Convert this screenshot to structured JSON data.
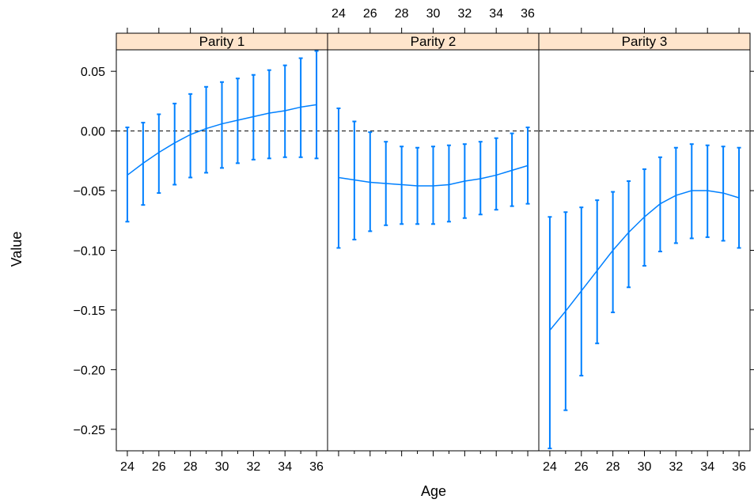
{
  "chart_data": {
    "type": "line",
    "xlabel": "Age",
    "ylabel": "Value",
    "xlim": [
      23.3,
      36.7
    ],
    "ylim": [
      -0.268,
      0.068
    ],
    "x_ticks": [
      24,
      26,
      28,
      30,
      32,
      34,
      36
    ],
    "y_ticks": [
      -0.25,
      -0.2,
      -0.15,
      -0.1,
      -0.05,
      0.0,
      0.05
    ],
    "y_tick_labels": [
      "−0.25",
      "−0.20",
      "−0.15",
      "−0.10",
      "−0.05",
      "0.00",
      "0.05"
    ],
    "reference_line": 0,
    "panels": [
      {
        "title": "Parity 1",
        "x": [
          24,
          25,
          26,
          27,
          28,
          29,
          30,
          31,
          32,
          33,
          34,
          35,
          36
        ],
        "y": [
          -0.037,
          -0.027,
          -0.018,
          -0.01,
          -0.003,
          0.002,
          0.006,
          0.009,
          0.012,
          0.015,
          0.017,
          0.02,
          0.022
        ],
        "lower": [
          -0.076,
          -0.062,
          -0.052,
          -0.045,
          -0.039,
          -0.035,
          -0.031,
          -0.027,
          -0.024,
          -0.023,
          -0.022,
          -0.022,
          -0.023
        ],
        "upper": [
          0.003,
          0.007,
          0.014,
          0.023,
          0.031,
          0.037,
          0.041,
          0.044,
          0.047,
          0.051,
          0.055,
          0.061,
          0.067
        ]
      },
      {
        "title": "Parity 2",
        "x": [
          24,
          25,
          26,
          27,
          28,
          29,
          30,
          31,
          32,
          33,
          34,
          35,
          36
        ],
        "y": [
          -0.039,
          -0.041,
          -0.043,
          -0.044,
          -0.045,
          -0.046,
          -0.046,
          -0.045,
          -0.042,
          -0.04,
          -0.037,
          -0.033,
          -0.029
        ],
        "lower": [
          -0.098,
          -0.091,
          -0.084,
          -0.079,
          -0.078,
          -0.078,
          -0.078,
          -0.076,
          -0.073,
          -0.07,
          -0.066,
          -0.063,
          -0.061
        ],
        "upper": [
          0.019,
          0.008,
          -0.001,
          -0.009,
          -0.013,
          -0.014,
          -0.013,
          -0.012,
          -0.011,
          -0.009,
          -0.006,
          -0.002,
          0.003
        ]
      },
      {
        "title": "Parity 3",
        "x": [
          24,
          25,
          26,
          27,
          28,
          29,
          30,
          31,
          32,
          33,
          34,
          35,
          36
        ],
        "y": [
          -0.167,
          -0.151,
          -0.134,
          -0.117,
          -0.1,
          -0.085,
          -0.072,
          -0.061,
          -0.054,
          -0.05,
          -0.05,
          -0.052,
          -0.056
        ],
        "lower": [
          -0.266,
          -0.234,
          -0.205,
          -0.178,
          -0.152,
          -0.131,
          -0.113,
          -0.101,
          -0.094,
          -0.09,
          -0.089,
          -0.092,
          -0.098
        ],
        "upper": [
          -0.072,
          -0.068,
          -0.064,
          -0.058,
          -0.051,
          -0.042,
          -0.032,
          -0.022,
          -0.014,
          -0.011,
          -0.012,
          -0.013,
          -0.014
        ]
      }
    ],
    "colors": {
      "series": "#0080ff",
      "strip_background": "#ffe5cc",
      "reference_line": "#000000"
    }
  }
}
